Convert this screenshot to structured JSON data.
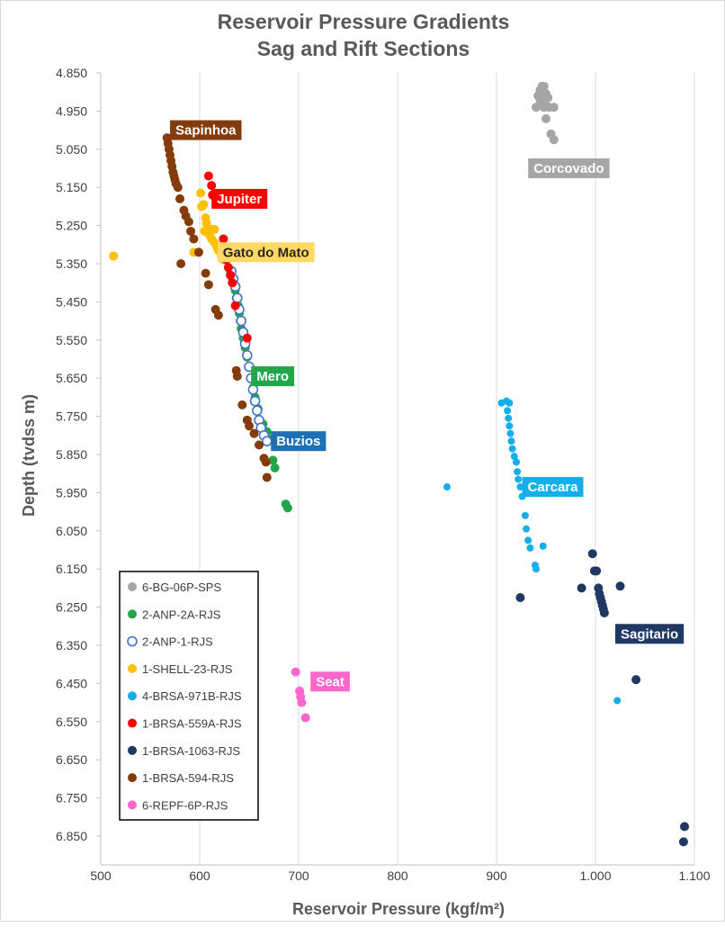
{
  "chart_data": {
    "type": "scatter",
    "title": [
      "Reservoir Pressure Gradients",
      "Sag and Rift Sections"
    ],
    "xlabel": "Reservoir Pressure (kgf/m²)",
    "ylabel": "Depth (tvdss m)",
    "xlim": [
      500,
      1100
    ],
    "ylim": [
      4850,
      6900
    ],
    "y_inverted": true,
    "grid": "vertical-major",
    "x_ticks": [
      500,
      600,
      700,
      800,
      900,
      1000,
      1100
    ],
    "x_tick_labels": [
      "500",
      "600",
      "700",
      "800",
      "900",
      "1.000",
      "1.100"
    ],
    "y_ticks": [
      4850,
      4950,
      5050,
      5150,
      5250,
      5350,
      5450,
      5550,
      5650,
      5750,
      5850,
      5950,
      6050,
      6150,
      6250,
      6350,
      6450,
      6550,
      6650,
      6750,
      6850
    ],
    "y_tick_labels": [
      "4.850",
      "4.950",
      "5.050",
      "5.150",
      "5.250",
      "5.350",
      "5.450",
      "5.550",
      "5.650",
      "5.750",
      "5.850",
      "5.950",
      "6.050",
      "6.150",
      "6.250",
      "6.350",
      "6.450",
      "6.550",
      "6.650",
      "6.750",
      "6.850"
    ],
    "legend_position": "bottom-left",
    "series": [
      {
        "name": "6-BG-06P-SPS",
        "color": "#a6a6a6",
        "marker": "filled",
        "points": [
          [
            946,
            4885
          ],
          [
            948,
            4885
          ],
          [
            944,
            4895
          ],
          [
            948,
            4900
          ],
          [
            950,
            4905
          ],
          [
            942,
            4910
          ],
          [
            946,
            4915
          ],
          [
            952,
            4915
          ],
          [
            944,
            4920
          ],
          [
            948,
            4925
          ],
          [
            950,
            4935
          ],
          [
            940,
            4940
          ],
          [
            948,
            4940
          ],
          [
            953,
            4940
          ],
          [
            958,
            4940
          ],
          [
            944,
            4935
          ],
          [
            950,
            4970
          ],
          [
            955,
            5010
          ],
          [
            958,
            5025
          ]
        ]
      },
      {
        "name": "2-ANP-2A-RJS",
        "color": "#22a64a",
        "marker": "filled",
        "points": [
          [
            636,
            5420
          ],
          [
            637,
            5440
          ],
          [
            639,
            5460
          ],
          [
            640,
            5480
          ],
          [
            641,
            5500
          ],
          [
            642,
            5520
          ],
          [
            644,
            5545
          ],
          [
            646,
            5570
          ],
          [
            648,
            5595
          ],
          [
            650,
            5620
          ],
          [
            652,
            5650
          ],
          [
            654,
            5675
          ],
          [
            656,
            5700
          ],
          [
            659,
            5730
          ],
          [
            664,
            5770
          ],
          [
            668,
            5790
          ],
          [
            670,
            5810
          ],
          [
            674,
            5865
          ],
          [
            676,
            5885
          ],
          [
            687,
            5980
          ],
          [
            689,
            5990
          ]
        ]
      },
      {
        "name": "2-ANP-1-RJS",
        "color": "#4472c4",
        "marker": "hollow",
        "points": [
          [
            632,
            5370
          ],
          [
            634,
            5390
          ],
          [
            636,
            5410
          ],
          [
            638,
            5440
          ],
          [
            640,
            5470
          ],
          [
            642,
            5500
          ],
          [
            644,
            5530
          ],
          [
            646,
            5560
          ],
          [
            648,
            5590
          ],
          [
            650,
            5620
          ],
          [
            652,
            5650
          ],
          [
            654,
            5680
          ],
          [
            656,
            5710
          ],
          [
            658,
            5735
          ],
          [
            660,
            5760
          ],
          [
            662,
            5780
          ],
          [
            665,
            5800
          ],
          [
            668,
            5815
          ]
        ]
      },
      {
        "name": "1-SHELL-23-RJS",
        "color": "#ffc000",
        "marker": "filled",
        "points": [
          [
            513,
            5330
          ],
          [
            601,
            5165
          ],
          [
            604,
            5195
          ],
          [
            602,
            5200
          ],
          [
            606,
            5230
          ],
          [
            607,
            5245
          ],
          [
            612,
            5260
          ],
          [
            615,
            5260
          ],
          [
            610,
            5275
          ],
          [
            612,
            5285
          ],
          [
            615,
            5295
          ],
          [
            617,
            5305
          ],
          [
            619,
            5315
          ],
          [
            622,
            5330
          ],
          [
            624,
            5340
          ],
          [
            594,
            5320
          ],
          [
            605,
            5265
          ]
        ]
      },
      {
        "name": "4-BRSA-971B-RJS",
        "color": "#16aee9",
        "marker": "filled",
        "points": [
          [
            905,
            5715
          ],
          [
            910,
            5710
          ],
          [
            913,
            5715
          ],
          [
            911,
            5735
          ],
          [
            912,
            5755
          ],
          [
            913,
            5775
          ],
          [
            914,
            5795
          ],
          [
            915,
            5815
          ],
          [
            916,
            5835
          ],
          [
            918,
            5855
          ],
          [
            920,
            5870
          ],
          [
            921,
            5895
          ],
          [
            922,
            5915
          ],
          [
            924,
            5935
          ],
          [
            926,
            5960
          ],
          [
            850,
            5935
          ],
          [
            929,
            6010
          ],
          [
            930,
            6045
          ],
          [
            932,
            6075
          ],
          [
            934,
            6095
          ],
          [
            947,
            6090
          ],
          [
            939,
            6140
          ],
          [
            940,
            6150
          ],
          [
            1022,
            6495
          ]
        ]
      },
      {
        "name": "1-BRSA-559A-RJS",
        "color": "#ff0000",
        "marker": "filled",
        "points": [
          [
            609,
            5120
          ],
          [
            612,
            5145
          ],
          [
            613,
            5170
          ],
          [
            624,
            5285
          ],
          [
            627,
            5340
          ],
          [
            629,
            5360
          ],
          [
            631,
            5380
          ],
          [
            633,
            5400
          ],
          [
            636,
            5460
          ],
          [
            648,
            5545
          ]
        ]
      },
      {
        "name": "1-BRSA-1063-RJS",
        "color": "#203864",
        "marker": "filled",
        "points": [
          [
            997,
            6110
          ],
          [
            999,
            6155
          ],
          [
            1001,
            6155
          ],
          [
            986,
            6200
          ],
          [
            1003,
            6200
          ],
          [
            1004,
            6215
          ],
          [
            1005,
            6225
          ],
          [
            1006,
            6235
          ],
          [
            1007,
            6245
          ],
          [
            1008,
            6255
          ],
          [
            1009,
            6265
          ],
          [
            1025,
            6195
          ],
          [
            924,
            6225
          ],
          [
            1041,
            6440
          ],
          [
            1090,
            6825
          ],
          [
            1089,
            6865
          ]
        ]
      },
      {
        "name": "1-BRSA-594-RJS",
        "color": "#843c0c",
        "marker": "filled",
        "points": [
          [
            567,
            5020
          ],
          [
            568,
            5035
          ],
          [
            569,
            5050
          ],
          [
            570,
            5065
          ],
          [
            571,
            5080
          ],
          [
            572,
            5095
          ],
          [
            573,
            5110
          ],
          [
            574,
            5120
          ],
          [
            575,
            5130
          ],
          [
            576,
            5140
          ],
          [
            578,
            5150
          ],
          [
            580,
            5180
          ],
          [
            584,
            5210
          ],
          [
            586,
            5225
          ],
          [
            589,
            5240
          ],
          [
            591,
            5265
          ],
          [
            594,
            5285
          ],
          [
            581,
            5350
          ],
          [
            599,
            5320
          ],
          [
            606,
            5375
          ],
          [
            609,
            5405
          ],
          [
            616,
            5470
          ],
          [
            619,
            5485
          ],
          [
            637,
            5630
          ],
          [
            638,
            5645
          ],
          [
            643,
            5720
          ],
          [
            648,
            5760
          ],
          [
            650,
            5775
          ],
          [
            655,
            5795
          ],
          [
            660,
            5825
          ],
          [
            665,
            5860
          ],
          [
            667,
            5870
          ],
          [
            668,
            5910
          ]
        ]
      },
      {
        "name": "6-REPF-6P-RJS",
        "color": "#ff66cc",
        "marker": "filled",
        "points": [
          [
            697,
            6420
          ],
          [
            701,
            6470
          ],
          [
            702,
            6485
          ],
          [
            703,
            6500
          ],
          [
            707,
            6540
          ]
        ]
      }
    ],
    "annotations": [
      {
        "text": "Sapinhoa",
        "color": "#843c0c",
        "text_color": "#ffffff",
        "x": 570,
        "y": 5000,
        "anchor": "left"
      },
      {
        "text": "Jupiter",
        "color": "#ff0000",
        "text_color": "#ffffff",
        "x": 612,
        "y": 5180,
        "anchor": "left"
      },
      {
        "text": "Gato do Mato",
        "color": "#ffd966",
        "text_color": "#262626",
        "x": 618,
        "y": 5320,
        "anchor": "left"
      },
      {
        "text": "Mero",
        "color": "#22a64a",
        "text_color": "#ffffff",
        "x": 652,
        "y": 5645,
        "anchor": "left"
      },
      {
        "text": "Buzios",
        "color": "#1f6fb3",
        "text_color": "#ffffff",
        "x": 672,
        "y": 5815,
        "anchor": "left"
      },
      {
        "text": "Corcovado",
        "color": "#a6a6a6",
        "text_color": "#ffffff",
        "x": 932,
        "y": 5100,
        "anchor": "left"
      },
      {
        "text": "Carcara",
        "color": "#16aee9",
        "text_color": "#ffffff",
        "x": 926,
        "y": 5935,
        "anchor": "left"
      },
      {
        "text": "Sagitario",
        "color": "#203864",
        "text_color": "#ffffff",
        "x": 1020,
        "y": 6320,
        "anchor": "left"
      },
      {
        "text": "Seat",
        "color": "#ff66cc",
        "text_color": "#ffffff",
        "x": 712,
        "y": 6445,
        "anchor": "left"
      }
    ]
  }
}
